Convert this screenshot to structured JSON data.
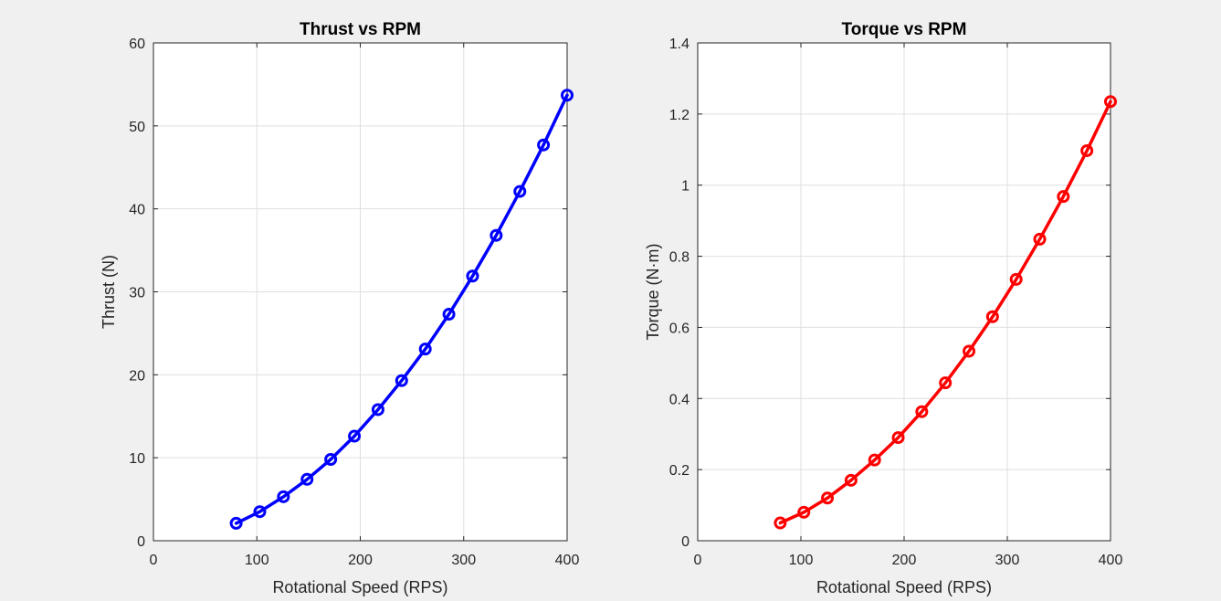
{
  "chart_data": [
    {
      "type": "line",
      "title": "Thrust vs RPM",
      "xlabel": "Rotational Speed (RPS)",
      "ylabel": "Thrust (N)",
      "xlim": [
        0,
        400
      ],
      "ylim": [
        0,
        60
      ],
      "xticks": [
        0,
        100,
        200,
        300,
        400
      ],
      "yticks": [
        0,
        10,
        20,
        30,
        40,
        50,
        60
      ],
      "grid": true,
      "marker": "circle",
      "series": [
        {
          "color": "#0000ff",
          "x": [
            80,
            102.86,
            125.71,
            148.57,
            171.43,
            194.29,
            217.14,
            240,
            262.86,
            285.71,
            308.57,
            331.43,
            354.29,
            377.14,
            400
          ],
          "values": [
            2.1,
            3.5,
            5.3,
            7.4,
            9.8,
            12.6,
            15.8,
            19.3,
            23.1,
            27.3,
            31.9,
            36.8,
            42.1,
            47.7,
            53.7
          ]
        }
      ]
    },
    {
      "type": "line",
      "title": "Torque vs RPM",
      "xlabel": "Rotational Speed (RPS)",
      "ylabel": "Torque (N·m)",
      "xlim": [
        0,
        400
      ],
      "ylim": [
        0,
        1.4
      ],
      "xticks": [
        0,
        100,
        200,
        300,
        400
      ],
      "yticks": [
        0,
        0.2,
        0.4,
        0.6,
        0.8,
        1,
        1.2,
        1.4
      ],
      "grid": true,
      "marker": "circle",
      "series": [
        {
          "color": "#ff0000",
          "x": [
            80,
            102.86,
            125.71,
            148.57,
            171.43,
            194.29,
            217.14,
            240,
            262.86,
            285.71,
            308.57,
            331.43,
            354.29,
            377.14,
            400
          ],
          "values": [
            0.05,
            0.08,
            0.12,
            0.17,
            0.227,
            0.29,
            0.363,
            0.444,
            0.533,
            0.63,
            0.735,
            0.848,
            0.968,
            1.097,
            1.235
          ]
        }
      ]
    }
  ]
}
